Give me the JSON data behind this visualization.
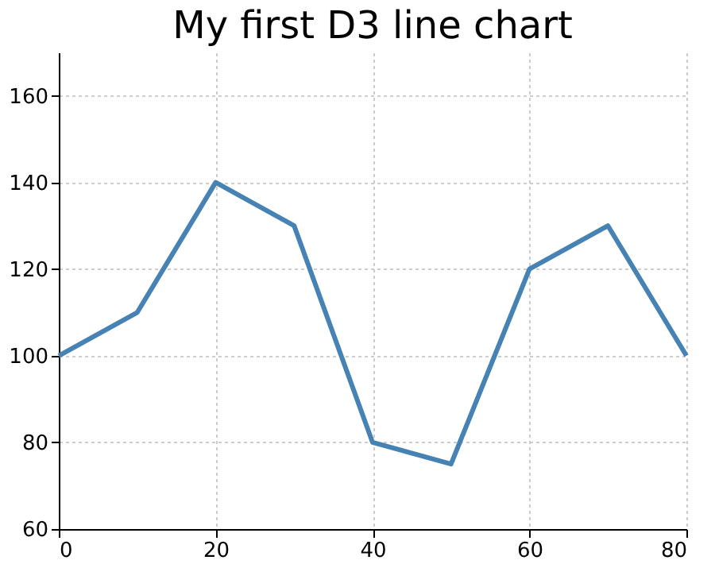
{
  "chart_data": {
    "type": "line",
    "title": "My first D3 line chart",
    "x": [
      0,
      10,
      20,
      30,
      40,
      50,
      60,
      70,
      80
    ],
    "series": [
      {
        "color": "#4682b4",
        "values": [
          100,
          110,
          140,
          130,
          80,
          75,
          120,
          130,
          100
        ]
      }
    ],
    "xlim": [
      0,
      80
    ],
    "xticks": [
      0,
      20,
      40,
      60,
      80
    ],
    "ylim": [
      60,
      170
    ],
    "yticks": [
      60,
      80,
      100,
      120,
      140,
      160
    ],
    "grid": true,
    "marker": "none",
    "line_style": "solid",
    "legend": false
  }
}
